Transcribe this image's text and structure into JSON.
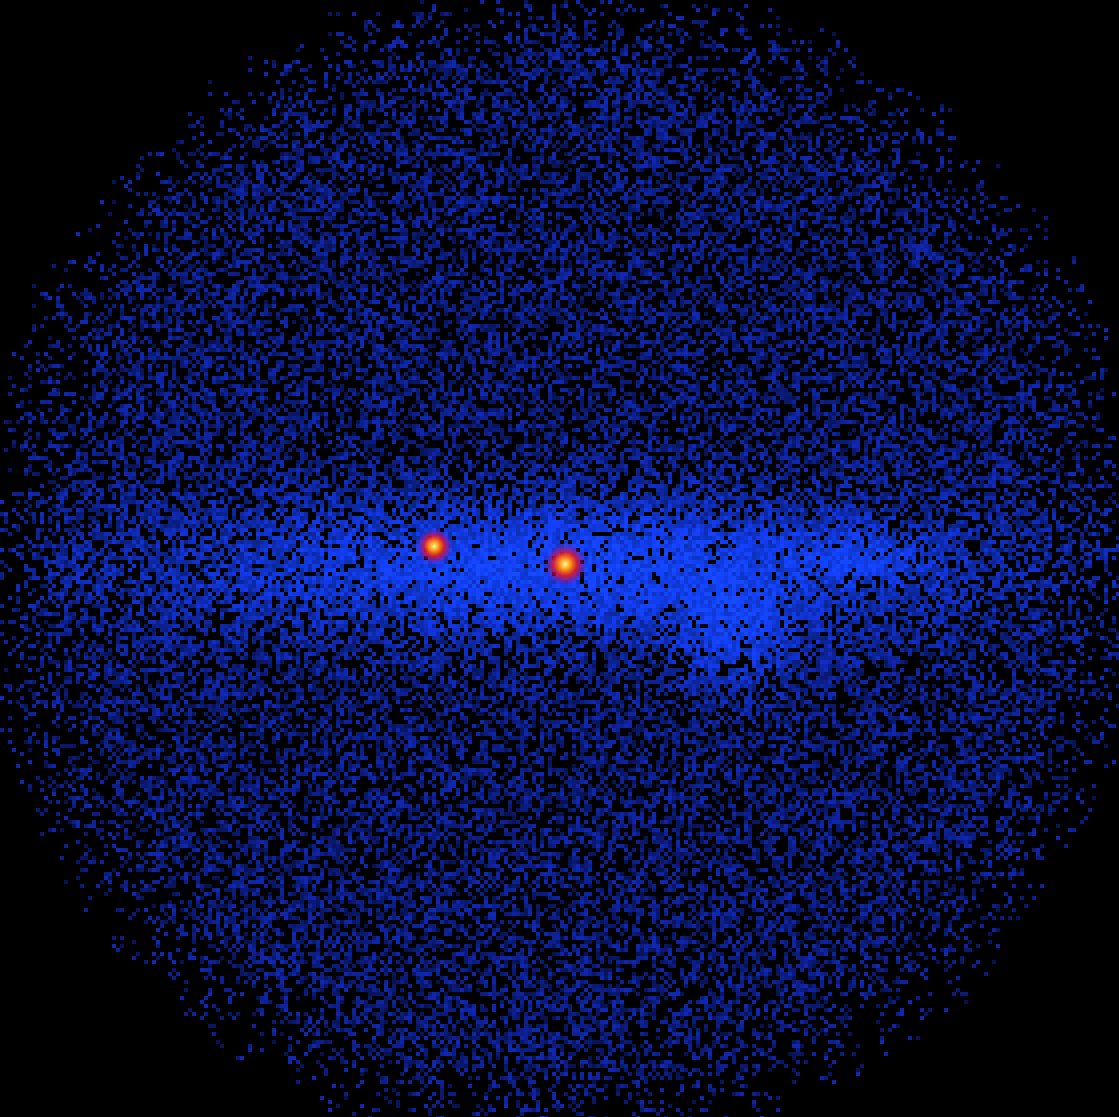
{
  "image": {
    "subject": "x-ray-sky-map",
    "colors": {
      "background": "#000000",
      "noise": "#1a2fd9",
      "band_glow": "#2a4cff",
      "source_core": "#fff27a",
      "source_halo": "#ff2a10"
    },
    "sources": [
      {
        "name": "bright-point-source",
        "brightness": 1.0
      },
      {
        "name": "secondary-point-source",
        "brightness": 0.7
      }
    ]
  }
}
